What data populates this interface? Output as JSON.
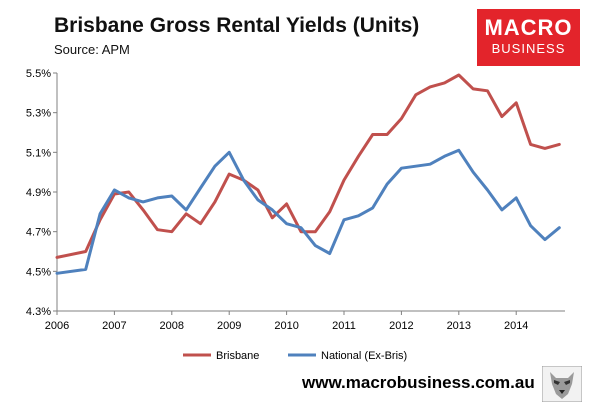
{
  "header": {
    "title": "Brisbane Gross Rental Yields (Units)",
    "source": "Source: APM"
  },
  "logo": {
    "line1": "MACRO",
    "line2": "BUSINESS",
    "bg_color": "#e3242b"
  },
  "footer": {
    "url": "www.macrobusiness.com.au",
    "icon": "wolf-logo-icon"
  },
  "chart_data": {
    "type": "line",
    "title": "Brisbane Gross Rental Yields (Units)",
    "y_ticks": [
      "4.3%",
      "4.5%",
      "4.7%",
      "4.9%",
      "5.1%",
      "5.3%",
      "5.5%"
    ],
    "ylim": [
      4.3,
      5.5
    ],
    "x_ticks": [
      "2006",
      "2007",
      "2008",
      "2009",
      "2010",
      "2011",
      "2012",
      "2013",
      "2014"
    ],
    "xlim": [
      2006.0,
      2014.85
    ],
    "grid": false,
    "legend_position": "bottom",
    "series": [
      {
        "name": "Brisbane",
        "color": "#c0504d",
        "x": [
          2006.0,
          2006.5,
          2006.75,
          2007.0,
          2007.25,
          2007.5,
          2007.75,
          2008.0,
          2008.25,
          2008.5,
          2008.75,
          2009.0,
          2009.25,
          2009.5,
          2009.75,
          2010.0,
          2010.25,
          2010.5,
          2010.75,
          2011.0,
          2011.25,
          2011.5,
          2011.75,
          2012.0,
          2012.25,
          2012.5,
          2012.75,
          2013.0,
          2013.25,
          2013.5,
          2013.75,
          2014.0,
          2014.25,
          2014.5,
          2014.75
        ],
        "values": [
          4.57,
          4.6,
          4.76,
          4.89,
          4.9,
          4.81,
          4.71,
          4.7,
          4.79,
          4.74,
          4.85,
          4.99,
          4.96,
          4.91,
          4.77,
          4.84,
          4.7,
          4.7,
          4.8,
          4.96,
          5.08,
          5.19,
          5.19,
          5.27,
          5.39,
          5.43,
          5.45,
          5.49,
          5.42,
          5.41,
          5.28,
          5.35,
          5.14,
          5.12,
          5.14
        ]
      },
      {
        "name": "National (Ex-Bris)",
        "color": "#4f81bd",
        "x": [
          2006.0,
          2006.5,
          2006.75,
          2007.0,
          2007.25,
          2007.5,
          2007.75,
          2008.0,
          2008.25,
          2008.5,
          2008.75,
          2009.0,
          2009.25,
          2009.5,
          2009.75,
          2010.0,
          2010.25,
          2010.5,
          2010.75,
          2011.0,
          2011.25,
          2011.5,
          2011.75,
          2012.0,
          2012.25,
          2012.5,
          2012.75,
          2013.0,
          2013.25,
          2013.5,
          2013.75,
          2014.0,
          2014.25,
          2014.5,
          2014.75
        ],
        "values": [
          4.49,
          4.51,
          4.79,
          4.91,
          4.87,
          4.85,
          4.87,
          4.88,
          4.81,
          4.92,
          5.03,
          5.1,
          4.96,
          4.86,
          4.81,
          4.74,
          4.72,
          4.63,
          4.59,
          4.76,
          4.78,
          4.82,
          4.94,
          5.02,
          5.03,
          5.04,
          5.08,
          5.11,
          5.0,
          4.91,
          4.81,
          4.87,
          4.73,
          4.66,
          4.72
        ]
      }
    ]
  }
}
